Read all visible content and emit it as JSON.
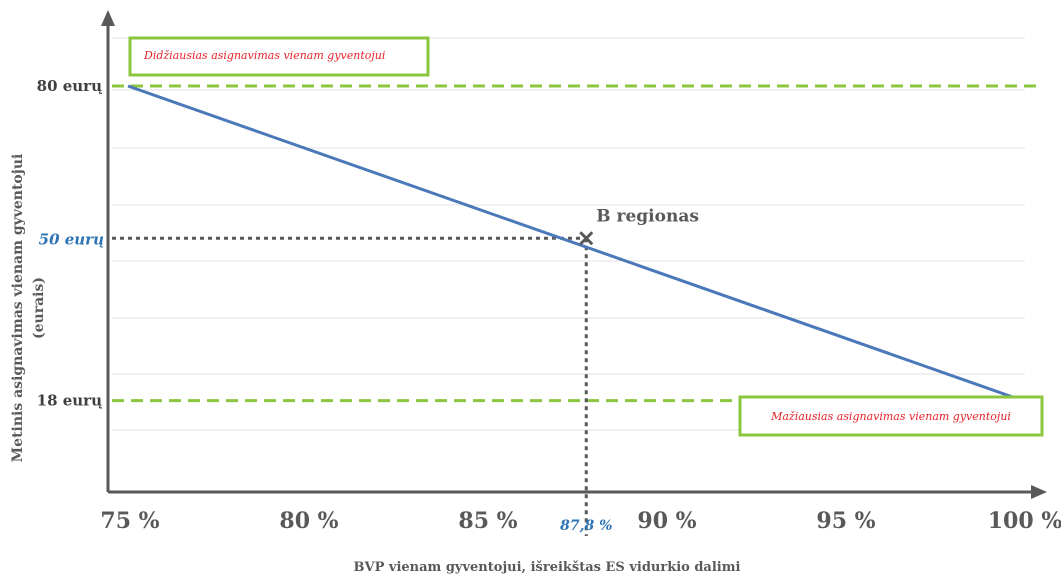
{
  "chart_data": {
    "type": "line",
    "xlabel": "BVP vienam gyventojui, išreikštas ES vidurkio dalimi",
    "ylabel_line1": "Metinis asignavimas vienam gyventojui",
    "ylabel_line2": "(eurais)",
    "xlim": [
      75,
      100
    ],
    "ylim": [
      0,
      100
    ],
    "x_ticks": [
      "75 %",
      "80 %",
      "85 %",
      "90 %",
      "95 %",
      "100 %"
    ],
    "x_tick_values": [
      75,
      80,
      85,
      90,
      95,
      100
    ],
    "series": [
      {
        "values_x": [
          75,
          100
        ],
        "values_y": [
          80,
          18
        ],
        "color": "#4a78b8"
      }
    ],
    "reference_lines": [
      {
        "y": 80,
        "label": "80 eurų",
        "color": "#8cc63f"
      },
      {
        "y": 18,
        "label": "18 eurų",
        "color": "#8cc63f"
      }
    ],
    "highlight_point": {
      "x": 87.8,
      "y": 50,
      "x_label": "87,8 %",
      "y_label": "50 eurų",
      "name": "B regionas",
      "marker_color": "#595959",
      "label_color": "#2e74b5"
    },
    "annotations": {
      "max_box": "Didžiausias asignavimas vienam gyventojui",
      "min_box": "Mažiausias asignavimas vienam gyventojui"
    },
    "grid": true
  }
}
